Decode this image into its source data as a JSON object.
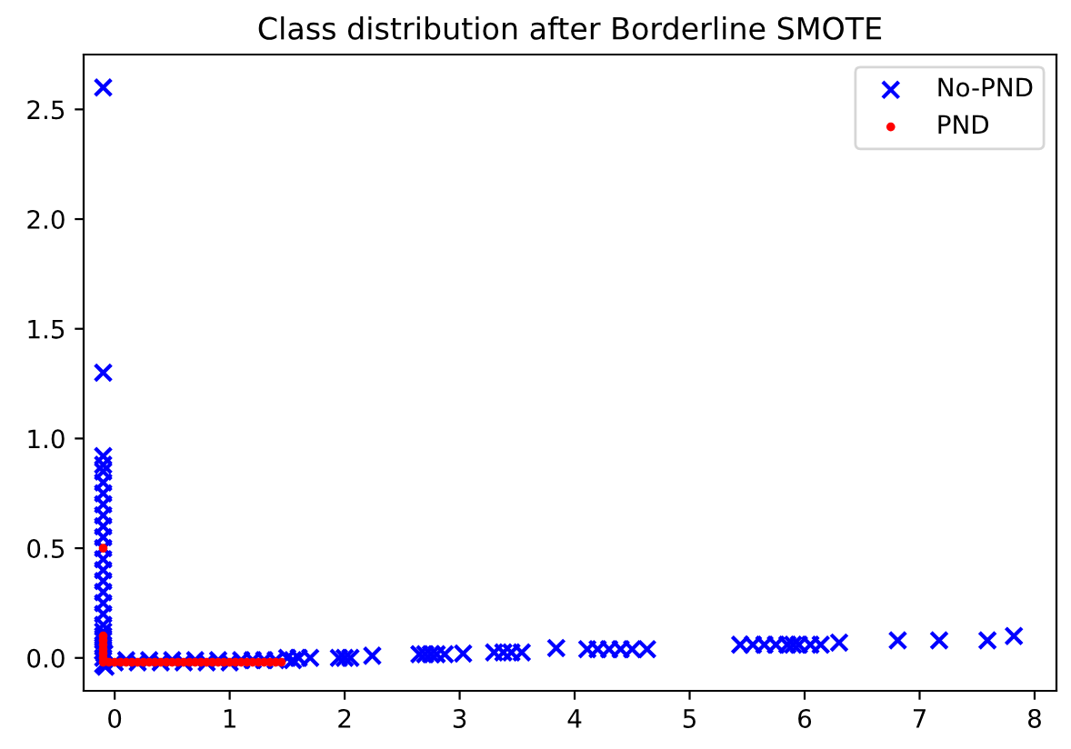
{
  "chart_data": {
    "type": "scatter",
    "title": "Class distribution after Borderline SMOTE",
    "xlim": [
      -0.27,
      8.19
    ],
    "ylim": [
      -0.15,
      2.75
    ],
    "xticks": [
      0,
      1,
      2,
      3,
      4,
      5,
      6,
      7,
      8
    ],
    "yticks": [
      {
        "value": 0,
        "label": "0.0"
      },
      {
        "value": 0.5,
        "label": "0.5"
      },
      {
        "value": 1,
        "label": "1.0"
      },
      {
        "value": 1.5,
        "label": "1.5"
      },
      {
        "value": 2,
        "label": "2.0"
      },
      {
        "value": 2.5,
        "label": "2.5"
      }
    ],
    "legend": "top right",
    "grid": false,
    "series": [
      {
        "name": "No-PND",
        "color": "#0000ff",
        "marker": "cross",
        "x": [
          -0.1,
          -0.1,
          -0.1,
          -0.1,
          -0.1,
          -0.1,
          -0.1,
          -0.1,
          -0.1,
          -0.1,
          -0.1,
          -0.1,
          -0.1,
          -0.1,
          -0.1,
          -0.1,
          -0.1,
          -0.1,
          -0.1,
          -0.1,
          -0.1,
          -0.1,
          -0.1,
          -0.1,
          -0.1,
          -0.1,
          -0.08,
          -0.09,
          0.0,
          0.1,
          0.2,
          0.3,
          0.4,
          0.5,
          0.6,
          0.7,
          0.8,
          0.9,
          1.0,
          1.1,
          1.2,
          1.3,
          1.4,
          1.5,
          1.55,
          1.6,
          1.7,
          1.95,
          2.0,
          2.05,
          2.24,
          2.65,
          2.7,
          2.75,
          2.8,
          2.87,
          3.03,
          3.3,
          3.38,
          3.45,
          3.54,
          3.84,
          4.11,
          4.2,
          4.3,
          4.4,
          4.5,
          4.63,
          5.44,
          5.55,
          5.65,
          5.75,
          5.85,
          5.9,
          5.95,
          6.05,
          6.14,
          6.3,
          6.81,
          7.17,
          7.59,
          7.82
        ],
        "values": [
          2.6,
          1.3,
          0.92,
          0.88,
          0.85,
          0.8,
          0.75,
          0.7,
          0.65,
          0.6,
          0.55,
          0.5,
          0.45,
          0.4,
          0.35,
          0.3,
          0.25,
          0.2,
          0.15,
          0.1,
          0.05,
          0.0,
          -0.03,
          0.03,
          0.08,
          0.12,
          -0.04,
          0.02,
          -0.02,
          -0.01,
          -0.02,
          -0.01,
          -0.02,
          -0.01,
          -0.02,
          -0.01,
          -0.02,
          -0.01,
          -0.02,
          -0.01,
          -0.01,
          -0.01,
          -0.01,
          0.0,
          -0.01,
          0.0,
          0.0,
          0.0,
          0.0,
          0.0,
          0.01,
          0.017,
          0.017,
          0.017,
          0.017,
          0.017,
          0.02,
          0.025,
          0.025,
          0.025,
          0.025,
          0.045,
          0.04,
          0.04,
          0.04,
          0.04,
          0.04,
          0.04,
          0.06,
          0.06,
          0.06,
          0.06,
          0.06,
          0.06,
          0.06,
          0.06,
          0.06,
          0.07,
          0.08,
          0.08,
          0.08,
          0.1
        ]
      },
      {
        "name": "PND",
        "color": "#ff0000",
        "marker": "circle",
        "x": [
          -0.1,
          -0.1,
          -0.1,
          -0.1,
          -0.1,
          -0.1,
          -0.1,
          -0.1,
          -0.05,
          0.0,
          0.05,
          0.1,
          0.15,
          0.2,
          0.25,
          0.3,
          0.35,
          0.4,
          0.45,
          0.5,
          0.55,
          0.6,
          0.65,
          0.7,
          0.75,
          0.8,
          0.85,
          0.9,
          0.95,
          1.0,
          1.05,
          1.1,
          1.15,
          1.2,
          1.25,
          1.3,
          1.35,
          1.4,
          1.45
        ],
        "values": [
          0.5,
          0.1,
          0.08,
          0.06,
          0.04,
          0.02,
          0.0,
          -0.02,
          -0.02,
          -0.02,
          -0.02,
          -0.02,
          -0.02,
          -0.02,
          -0.02,
          -0.02,
          -0.02,
          -0.02,
          -0.02,
          -0.02,
          -0.02,
          -0.02,
          -0.02,
          -0.02,
          -0.02,
          -0.02,
          -0.02,
          -0.02,
          -0.02,
          -0.02,
          -0.02,
          -0.02,
          -0.02,
          -0.02,
          -0.02,
          -0.02,
          -0.02,
          -0.02,
          -0.02
        ]
      }
    ]
  }
}
